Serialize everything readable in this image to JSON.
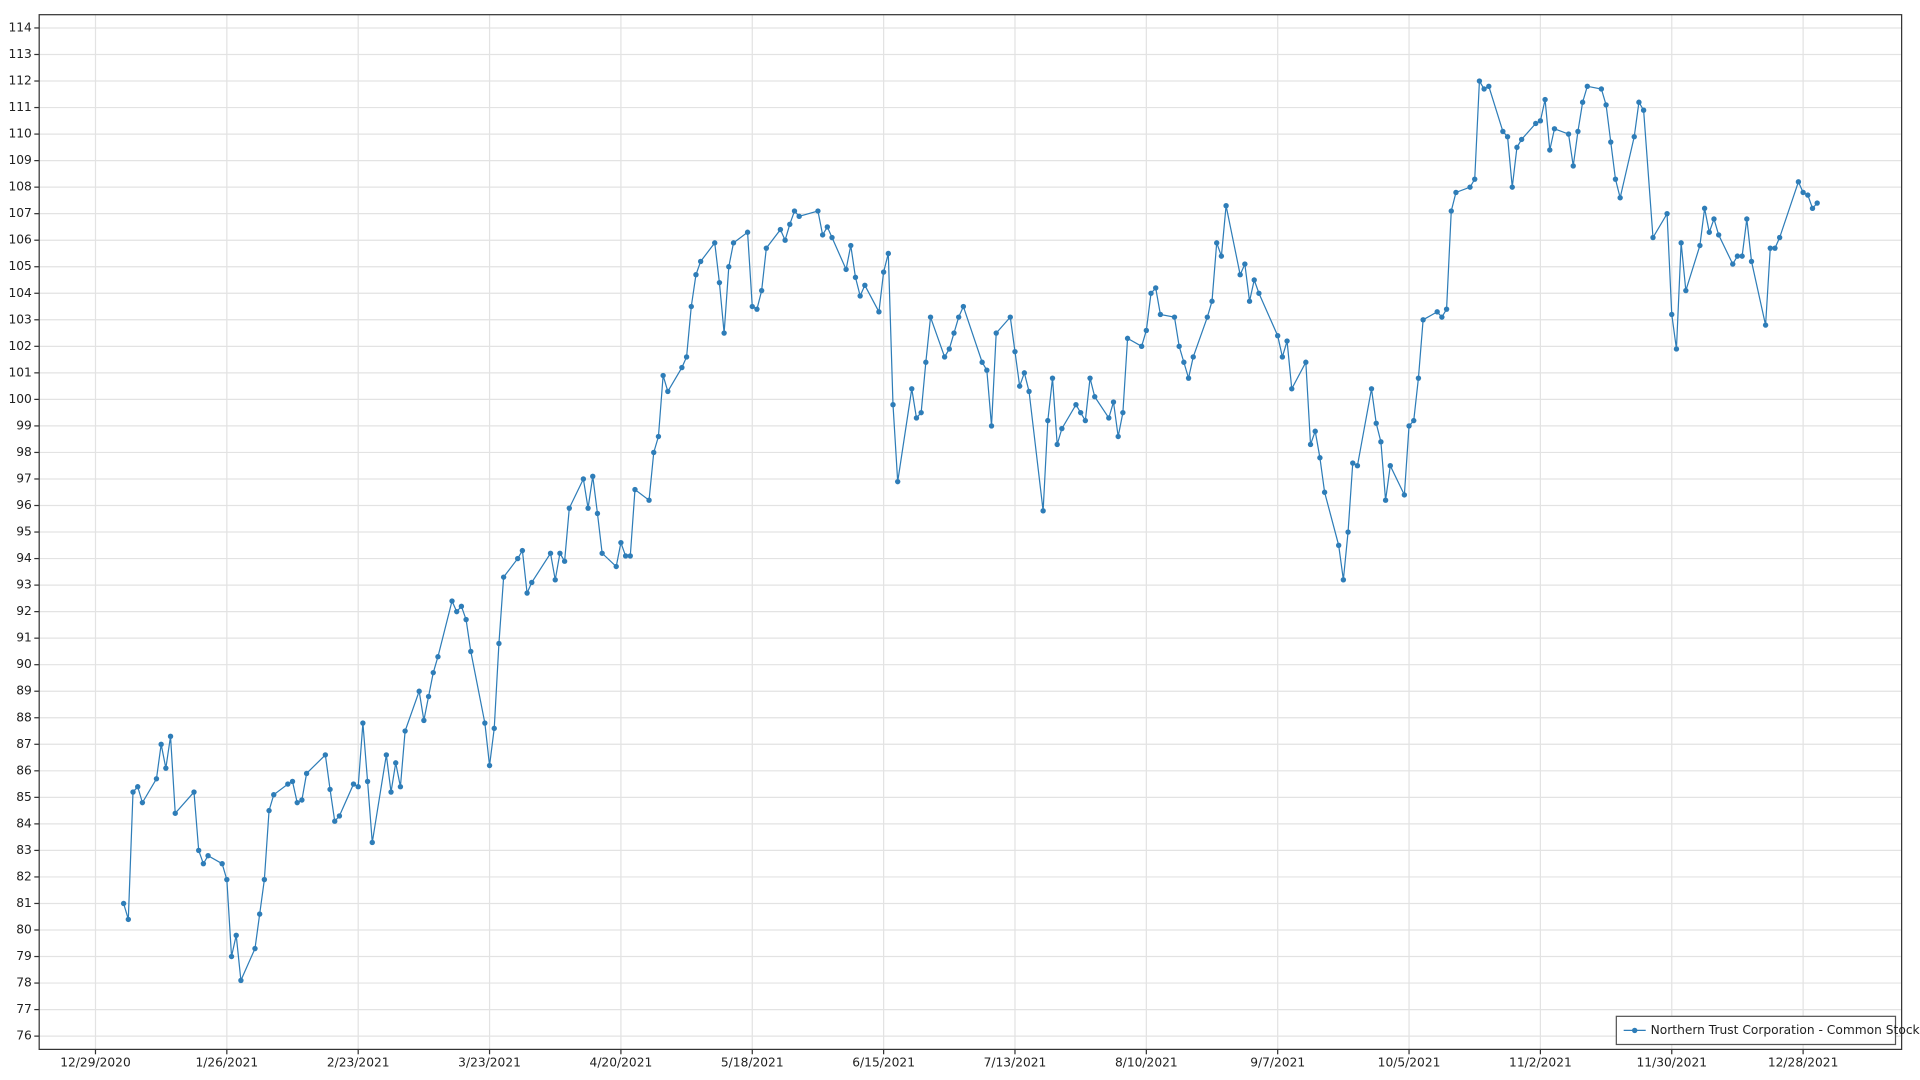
{
  "chart_data": {
    "type": "line",
    "x": [
      "1/4/2021",
      "1/5/2021",
      "1/6/2021",
      "1/7/2021",
      "1/8/2021",
      "1/11/2021",
      "1/12/2021",
      "1/13/2021",
      "1/14/2021",
      "1/15/2021",
      "1/19/2021",
      "1/20/2021",
      "1/21/2021",
      "1/22/2021",
      "1/25/2021",
      "1/26/2021",
      "1/27/2021",
      "1/28/2021",
      "1/29/2021",
      "2/1/2021",
      "2/2/2021",
      "2/3/2021",
      "2/4/2021",
      "2/5/2021",
      "2/8/2021",
      "2/9/2021",
      "2/10/2021",
      "2/11/2021",
      "2/12/2021",
      "2/16/2021",
      "2/17/2021",
      "2/18/2021",
      "2/19/2021",
      "2/22/2021",
      "2/23/2021",
      "2/24/2021",
      "2/25/2021",
      "2/26/2021",
      "3/1/2021",
      "3/2/2021",
      "3/3/2021",
      "3/4/2021",
      "3/5/2021",
      "3/8/2021",
      "3/9/2021",
      "3/10/2021",
      "3/11/2021",
      "3/12/2021",
      "3/15/2021",
      "3/16/2021",
      "3/17/2021",
      "3/18/2021",
      "3/19/2021",
      "3/22/2021",
      "3/23/2021",
      "3/24/2021",
      "3/25/2021",
      "3/26/2021",
      "3/29/2021",
      "3/30/2021",
      "3/31/2021",
      "4/1/2021",
      "4/5/2021",
      "4/6/2021",
      "4/7/2021",
      "4/8/2021",
      "4/9/2021",
      "4/12/2021",
      "4/13/2021",
      "4/14/2021",
      "4/15/2021",
      "4/16/2021",
      "4/19/2021",
      "4/20/2021",
      "4/21/2021",
      "4/22/2021",
      "4/23/2021",
      "4/26/2021",
      "4/27/2021",
      "4/28/2021",
      "4/29/2021",
      "4/30/2021",
      "5/3/2021",
      "5/4/2021",
      "5/5/2021",
      "5/6/2021",
      "5/7/2021",
      "5/10/2021",
      "5/11/2021",
      "5/12/2021",
      "5/13/2021",
      "5/14/2021",
      "5/17/2021",
      "5/18/2021",
      "5/19/2021",
      "5/20/2021",
      "5/21/2021",
      "5/24/2021",
      "5/25/2021",
      "5/26/2021",
      "5/27/2021",
      "5/28/2021",
      "6/1/2021",
      "6/2/2021",
      "6/3/2021",
      "6/4/2021",
      "6/7/2021",
      "6/8/2021",
      "6/9/2021",
      "6/10/2021",
      "6/11/2021",
      "6/14/2021",
      "6/15/2021",
      "6/16/2021",
      "6/17/2021",
      "6/18/2021",
      "6/21/2021",
      "6/22/2021",
      "6/23/2021",
      "6/24/2021",
      "6/25/2021",
      "6/28/2021",
      "6/29/2021",
      "6/30/2021",
      "7/1/2021",
      "7/2/2021",
      "7/6/2021",
      "7/7/2021",
      "7/8/2021",
      "7/9/2021",
      "7/12/2021",
      "7/13/2021",
      "7/14/2021",
      "7/15/2021",
      "7/16/2021",
      "7/19/2021",
      "7/20/2021",
      "7/21/2021",
      "7/22/2021",
      "7/23/2021",
      "7/26/2021",
      "7/27/2021",
      "7/28/2021",
      "7/29/2021",
      "7/30/2021",
      "8/2/2021",
      "8/3/2021",
      "8/4/2021",
      "8/5/2021",
      "8/6/2021",
      "8/9/2021",
      "8/10/2021",
      "8/11/2021",
      "8/12/2021",
      "8/13/2021",
      "8/16/2021",
      "8/17/2021",
      "8/18/2021",
      "8/19/2021",
      "8/20/2021",
      "8/23/2021",
      "8/24/2021",
      "8/25/2021",
      "8/26/2021",
      "8/27/2021",
      "8/30/2021",
      "8/31/2021",
      "9/1/2021",
      "9/2/2021",
      "9/3/2021",
      "9/7/2021",
      "9/8/2021",
      "9/9/2021",
      "9/10/2021",
      "9/13/2021",
      "9/14/2021",
      "9/15/2021",
      "9/16/2021",
      "9/17/2021",
      "9/20/2021",
      "9/21/2021",
      "9/22/2021",
      "9/23/2021",
      "9/24/2021",
      "9/27/2021",
      "9/28/2021",
      "9/29/2021",
      "9/30/2021",
      "10/1/2021",
      "10/4/2021",
      "10/5/2021",
      "10/6/2021",
      "10/7/2021",
      "10/8/2021",
      "10/11/2021",
      "10/12/2021",
      "10/13/2021",
      "10/14/2021",
      "10/15/2021",
      "10/18/2021",
      "10/19/2021",
      "10/20/2021",
      "10/21/2021",
      "10/22/2021",
      "10/25/2021",
      "10/26/2021",
      "10/27/2021",
      "10/28/2021",
      "10/29/2021",
      "11/1/2021",
      "11/2/2021",
      "11/3/2021",
      "11/4/2021",
      "11/5/2021",
      "11/8/2021",
      "11/9/2021",
      "11/10/2021",
      "11/11/2021",
      "11/12/2021",
      "11/15/2021",
      "11/16/2021",
      "11/17/2021",
      "11/18/2021",
      "11/19/2021",
      "11/22/2021",
      "11/23/2021",
      "11/24/2021",
      "11/26/2021",
      "11/29/2021",
      "11/30/2021",
      "12/1/2021",
      "12/2/2021",
      "12/3/2021",
      "12/6/2021",
      "12/7/2021",
      "12/8/2021",
      "12/9/2021",
      "12/10/2021",
      "12/13/2021",
      "12/14/2021",
      "12/15/2021",
      "12/16/2021",
      "12/17/2021",
      "12/20/2021",
      "12/21/2021",
      "12/22/2021",
      "12/23/2021",
      "12/27/2021",
      "12/28/2021",
      "12/29/2021",
      "12/30/2021",
      "12/31/2021"
    ],
    "series": [
      {
        "name": "Northern Trust Corporation - Common Stock",
        "color": "#2e7db8",
        "values": [
          81.0,
          80.4,
          85.2,
          85.4,
          84.8,
          85.7,
          87.0,
          86.1,
          87.3,
          84.4,
          85.2,
          83.0,
          82.5,
          82.8,
          82.5,
          81.9,
          79.0,
          79.8,
          78.1,
          79.3,
          80.6,
          81.9,
          84.5,
          85.1,
          85.5,
          85.6,
          84.8,
          84.9,
          85.9,
          86.6,
          85.3,
          84.1,
          84.3,
          85.5,
          85.4,
          87.8,
          85.6,
          83.3,
          86.6,
          85.2,
          86.3,
          85.4,
          87.5,
          89.0,
          87.9,
          88.8,
          89.7,
          90.3,
          92.4,
          92.0,
          92.2,
          91.7,
          90.5,
          87.8,
          86.2,
          87.6,
          90.8,
          93.3,
          94.0,
          94.3,
          92.7,
          93.1,
          94.2,
          93.2,
          94.2,
          93.9,
          95.9,
          97.0,
          95.9,
          97.1,
          95.7,
          94.2,
          93.7,
          94.6,
          94.1,
          94.1,
          96.6,
          96.2,
          98.0,
          98.6,
          100.9,
          100.3,
          101.2,
          101.6,
          103.5,
          104.7,
          105.2,
          105.9,
          104.4,
          102.5,
          105.0,
          105.9,
          106.3,
          103.5,
          103.4,
          104.1,
          105.7,
          106.4,
          106.0,
          106.6,
          107.1,
          106.9,
          107.1,
          106.2,
          106.5,
          106.1,
          104.9,
          105.8,
          104.6,
          103.9,
          104.3,
          103.3,
          104.8,
          105.5,
          99.8,
          96.9,
          100.4,
          99.3,
          99.5,
          101.4,
          103.1,
          101.6,
          101.9,
          102.5,
          103.1,
          103.5,
          101.4,
          101.1,
          99.0,
          102.5,
          103.1,
          101.8,
          100.5,
          101.0,
          100.3,
          95.8,
          99.2,
          100.8,
          98.3,
          98.9,
          99.8,
          99.5,
          99.2,
          100.8,
          100.1,
          99.3,
          99.9,
          98.6,
          99.5,
          102.3,
          102.0,
          102.6,
          104.0,
          104.2,
          103.2,
          103.1,
          102.0,
          101.4,
          100.8,
          101.6,
          103.1,
          103.7,
          105.9,
          105.4,
          107.3,
          104.7,
          105.1,
          103.7,
          104.5,
          104.0,
          102.4,
          101.6,
          102.2,
          100.4,
          101.4,
          98.3,
          98.8,
          97.8,
          96.5,
          94.5,
          93.2,
          95.0,
          97.6,
          97.5,
          100.4,
          99.1,
          98.4,
          96.2,
          97.5,
          96.4,
          99.0,
          99.2,
          100.8,
          103.0,
          103.3,
          103.1,
          103.4,
          107.1,
          107.8,
          108.0,
          108.3,
          112.0,
          111.7,
          111.8,
          110.1,
          109.9,
          108.0,
          109.5,
          109.8,
          110.4,
          110.5,
          111.3,
          109.4,
          110.2,
          110.0,
          108.8,
          110.1,
          111.2,
          111.8,
          111.7,
          111.1,
          109.7,
          108.3,
          107.6,
          109.9,
          111.2,
          110.9,
          106.1,
          107.0,
          103.2,
          101.9,
          105.9,
          104.1,
          105.8,
          107.2,
          106.3,
          106.8,
          106.2,
          105.1,
          105.4,
          105.4,
          106.8,
          105.2,
          102.8,
          105.7,
          105.7,
          106.1,
          108.2,
          107.8,
          107.7,
          107.2,
          107.4
        ]
      }
    ],
    "xlim": [
      "12/17/2020",
      "1/18/2022"
    ],
    "xticks": [
      "12/29/2020",
      "1/26/2021",
      "2/23/2021",
      "3/23/2021",
      "4/20/2021",
      "5/18/2021",
      "6/15/2021",
      "7/13/2021",
      "8/10/2021",
      "9/7/2021",
      "10/5/2021",
      "11/2/2021",
      "11/30/2021",
      "12/28/2021"
    ],
    "ylim": [
      75.5,
      114.5
    ],
    "yticks": [
      76,
      77,
      78,
      79,
      80,
      81,
      82,
      83,
      84,
      85,
      86,
      87,
      88,
      89,
      90,
      91,
      92,
      93,
      94,
      95,
      96,
      97,
      98,
      99,
      100,
      101,
      102,
      103,
      104,
      105,
      106,
      107,
      108,
      109,
      110,
      111,
      112,
      113,
      114
    ],
    "grid": true,
    "legend": "lower right"
  }
}
